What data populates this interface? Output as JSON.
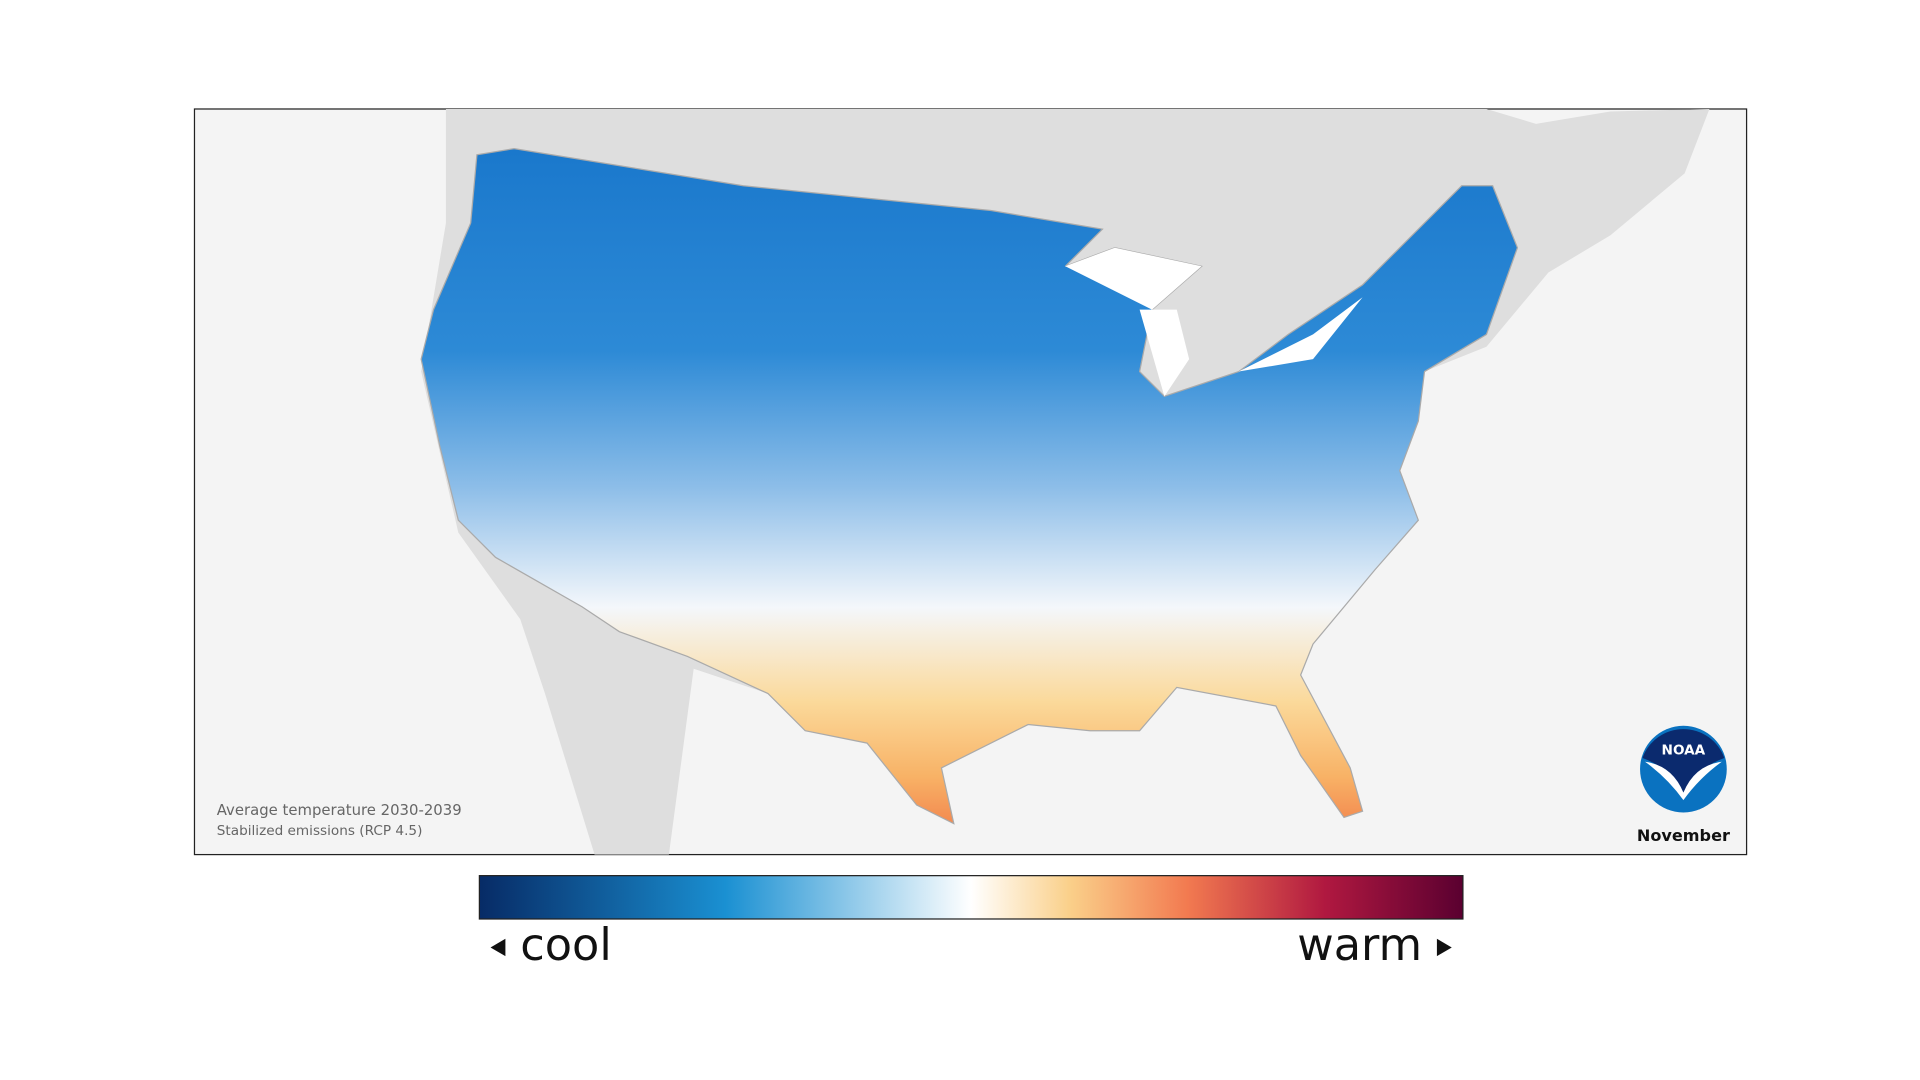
{
  "caption": {
    "title": "Average temperature 2030-2039",
    "subtitle": "Stabilized emissions (RCP 4.5)"
  },
  "month": "November",
  "logo": "NOAA",
  "legend": {
    "low": "cool",
    "high": "warm"
  }
}
